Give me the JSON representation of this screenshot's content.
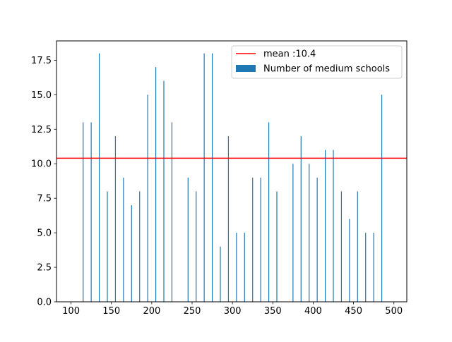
{
  "chart_data": {
    "type": "bar",
    "title": "",
    "xlabel": "",
    "ylabel": "",
    "xlim": [
      82,
      516
    ],
    "ylim": [
      0,
      18.9
    ],
    "x_ticks": [
      100,
      150,
      200,
      250,
      300,
      350,
      400,
      450,
      500
    ],
    "y_ticks": [
      0,
      2.5,
      5,
      7.5,
      10,
      12.5,
      15,
      17.5
    ],
    "x_tick_labels": [
      "100",
      "150",
      "200",
      "250",
      "300",
      "350",
      "400",
      "450",
      "500"
    ],
    "y_tick_labels": [
      "0.0",
      "2.5",
      "5.0",
      "7.5",
      "10.0",
      "12.5",
      "15.0",
      "17.5"
    ],
    "grid": false,
    "legend_position": "upper right",
    "series": [
      {
        "name": "Number of medium schools",
        "type": "bar",
        "color": "#1f77b4",
        "x": [
          115,
          125,
          135,
          145,
          155,
          165,
          175,
          185,
          195,
          205,
          215,
          225,
          245,
          255,
          265,
          275,
          285,
          295,
          305,
          315,
          325,
          335,
          345,
          355,
          375,
          385,
          395,
          405,
          415,
          425,
          435,
          445,
          455,
          465,
          475,
          485
        ],
        "values": [
          13,
          13,
          18,
          8,
          12,
          9,
          7,
          8,
          15,
          17,
          16,
          13,
          9,
          8,
          18,
          18,
          4,
          12,
          5,
          5,
          9,
          9,
          13,
          8,
          10,
          12,
          10,
          9,
          11,
          11,
          8,
          6,
          8,
          5,
          5,
          15
        ]
      },
      {
        "name": "mean :10.4",
        "type": "hline",
        "value": 10.4,
        "color": "#ff0000"
      }
    ]
  }
}
